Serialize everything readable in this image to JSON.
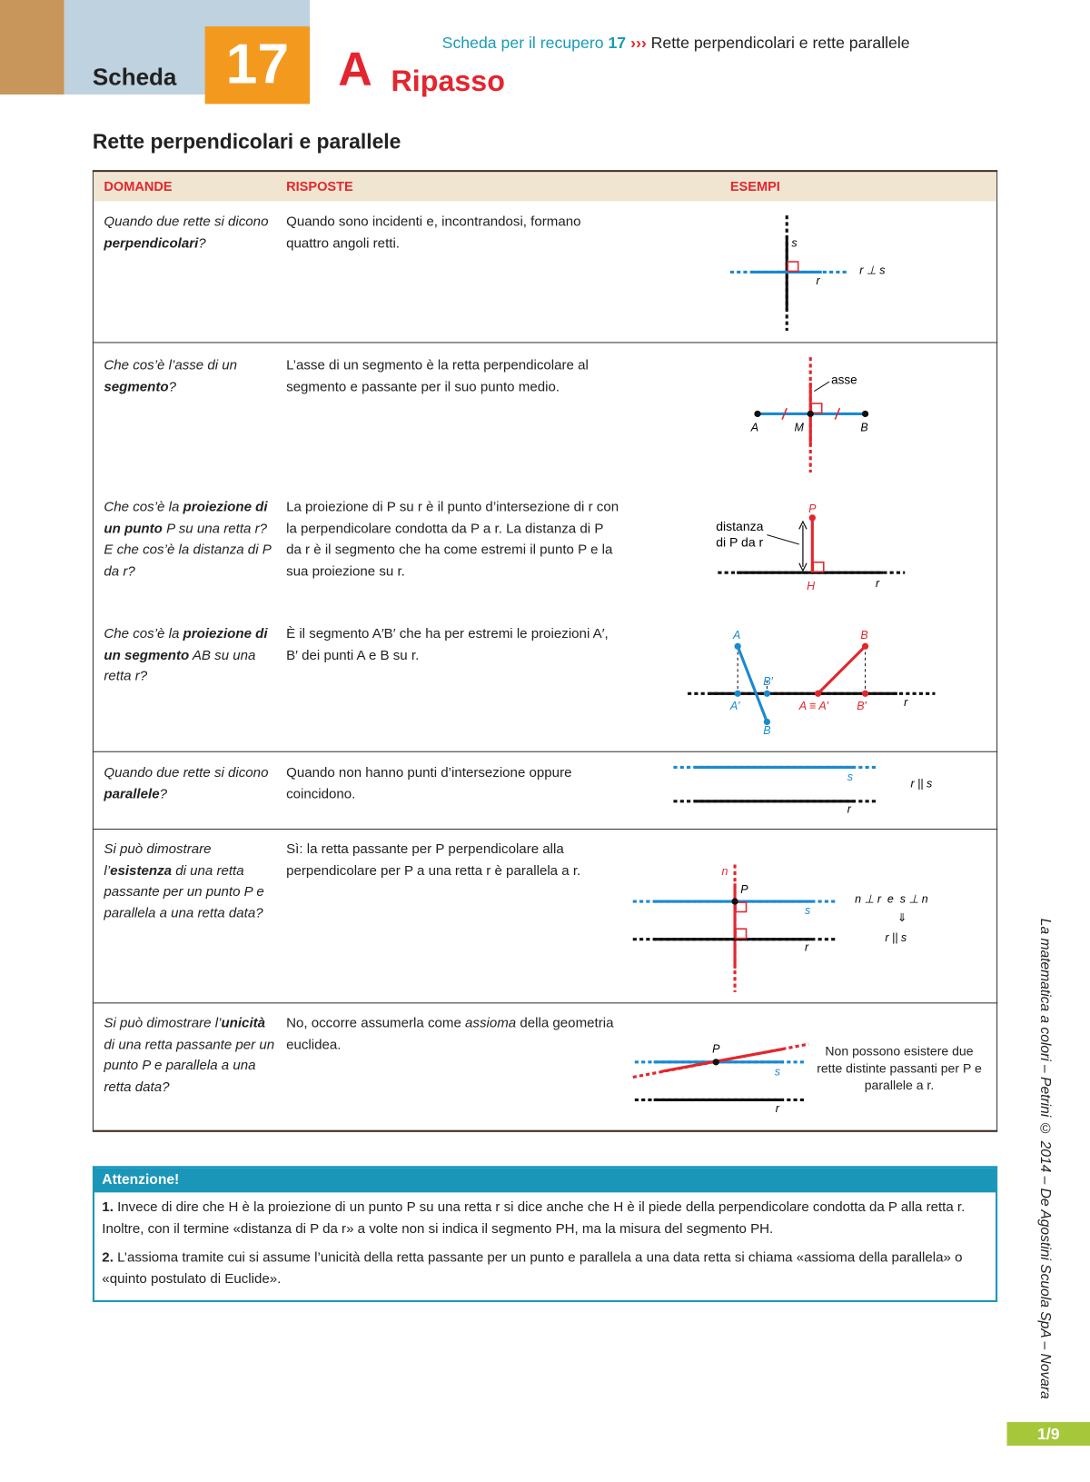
{
  "header": {
    "label": "Scheda",
    "number": "17",
    "letter": "A",
    "section": "Ripasso",
    "running_title": {
      "prefix": "Scheda per il recupero",
      "number": "17",
      "arrows": "›››",
      "topic": "Rette perpendicolari e rette parallele"
    }
  },
  "title": "Rette perpendicolari e parallele",
  "table": {
    "columns": [
      "DOMANDE",
      "RISPOSTE",
      "ESEMPI"
    ],
    "rows": [
      {
        "question": [
          "Quando due rette si dicono ",
          "perpendicolari",
          "?"
        ],
        "answer": "Quando sono incidenti e, incontrandosi, formano quattro angoli retti.",
        "example": [
          "s",
          "r",
          "r ⊥ s"
        ]
      },
      {
        "question": [
          "Che cos’è l’asse di un ",
          "segmento",
          "?"
        ],
        "answer": "L’asse di un segmento è la retta perpendicolare al segmento e passante per il suo punto medio.",
        "example": [
          "asse",
          "A",
          "M",
          "B"
        ]
      },
      {
        "question": [
          "Che cos’è la ",
          "proiezione di un punto",
          " P su una retta r? E che cos’è la distanza di P da r?"
        ],
        "answer": "La proiezione di P su r è il punto d’intersezione di r con la perpendicolare condotta da P a r. La distanza di P da r è il segmento che ha come estremi il punto P e la sua proiezione su r.",
        "example": [
          "P",
          "distanza",
          "di P da r",
          "H",
          "r"
        ]
      },
      {
        "question": [
          "Che cos’è la ",
          "proiezione di un segmento",
          " AB su una retta r?"
        ],
        "answer": "È il segmento A′B′ che ha per estremi le proiezioni A′, B′ dei punti A e B su r.",
        "example": [
          "A",
          "B′",
          "A′",
          "B",
          "B",
          "A ≡ A′",
          "B′",
          "r"
        ]
      },
      {
        "question": [
          "Quando due rette si dicono ",
          "parallele",
          "?"
        ],
        "answer": "Quando non hanno punti d’intersezione oppure coincidono.",
        "example": [
          "s",
          "r",
          "r || s"
        ]
      },
      {
        "question": [
          "Si può dimostrare l’",
          "esistenza",
          " di una retta passante per un punto P e parallela a una retta data?"
        ],
        "answer": "Sì: la retta passante per P perpendicolare alla perpendicolare per P a una retta r è parallela a r.",
        "example": [
          "n",
          "P",
          "s",
          "r",
          "n ⊥ r  e  s ⊥ n",
          "⇓",
          "r || s"
        ]
      },
      {
        "question": [
          "Si può dimostrare l’",
          "unicità",
          " di una retta passante per un punto P e parallela a una retta data?"
        ],
        "answer": [
          "No, occorre assumerla come ",
          "assioma",
          " della geometria euclidea."
        ],
        "example": [
          "P",
          "s",
          "r",
          "Non possono esistere due rette distinte passanti per P e parallele a r."
        ]
      }
    ]
  },
  "attention": {
    "title": "Attenzione!",
    "items": [
      {
        "number": "1.",
        "text": "Invece di dire che H è la proiezione di un punto P su una retta r si dice anche che H è il piede della perpendicolare condotta da P alla retta r. Inoltre, con il termine «distanza di P da r» a volte non si indica il segmento PH, ma la misura del segmento PH."
      },
      {
        "number": "2.",
        "text": "L’assioma tramite cui si assume l’unicità della retta passante per un punto e parallela a una data retta si chiama «assioma della parallela» o «quinto postulato di Euclide»."
      }
    ]
  },
  "footer": {
    "credit": "La matematica a colori – Petrini © 2014 – De Agostini Scuola SpA – Novara",
    "page": "1/9"
  }
}
